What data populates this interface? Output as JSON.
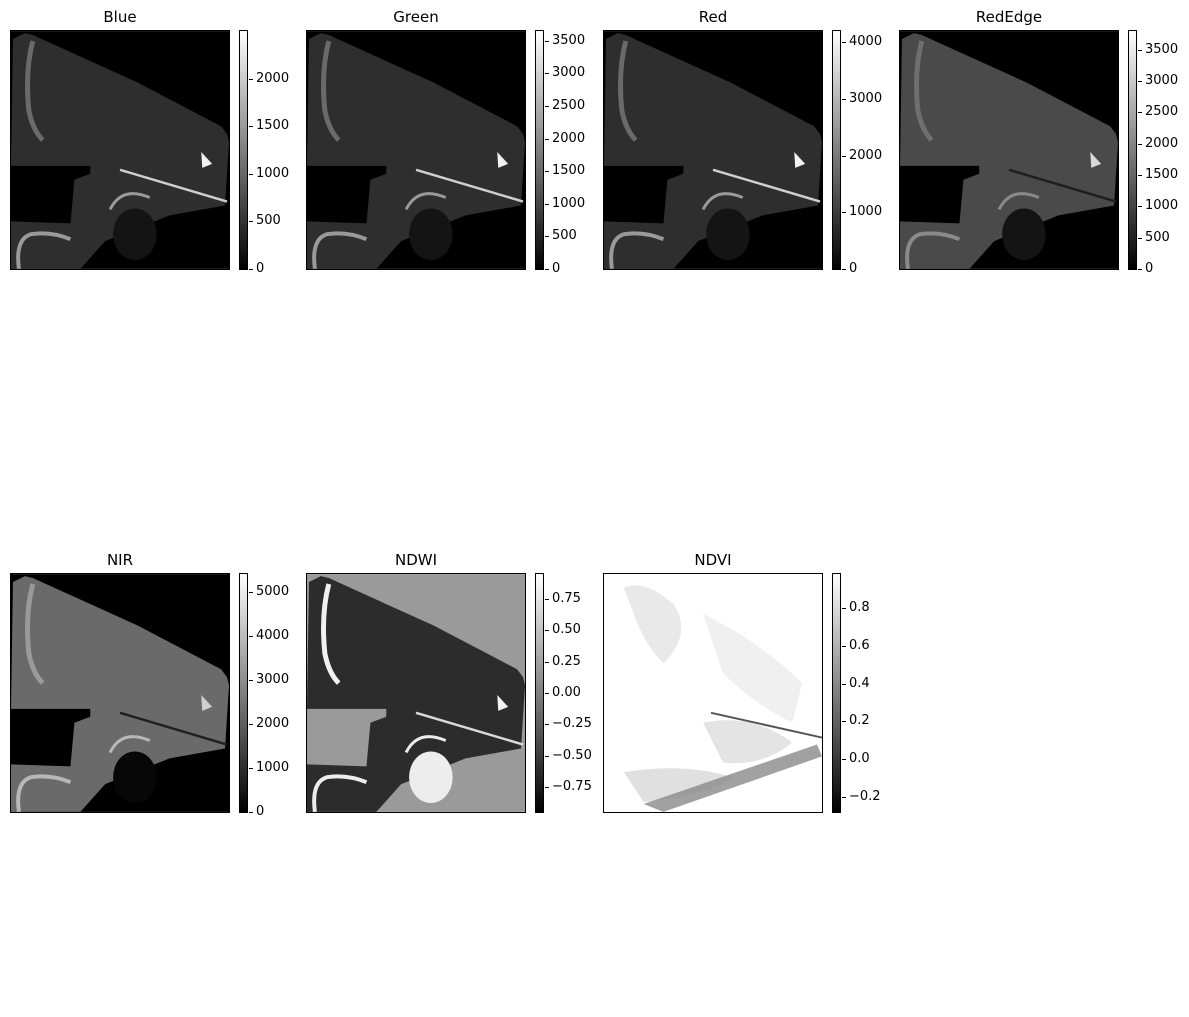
{
  "chart_data": [
    {
      "type": "heatmap",
      "title": "Blue",
      "colormap": "gray",
      "vmin": 0,
      "vmax": 2500,
      "ticks": [
        0,
        500,
        1000,
        1500,
        2000
      ],
      "tick_labels": [
        "0",
        "500",
        "1000",
        "1500",
        "2000"
      ]
    },
    {
      "type": "heatmap",
      "title": "Green",
      "colormap": "gray",
      "vmin": 0,
      "vmax": 3650,
      "ticks": [
        0,
        500,
        1000,
        1500,
        2000,
        2500,
        3000,
        3500
      ],
      "tick_labels": [
        "0",
        "500",
        "1000",
        "1500",
        "2000",
        "2500",
        "3000",
        "3500"
      ]
    },
    {
      "type": "heatmap",
      "title": "Red",
      "colormap": "gray",
      "vmin": 0,
      "vmax": 4200,
      "ticks": [
        0,
        1000,
        2000,
        3000,
        4000
      ],
      "tick_labels": [
        "0",
        "1000",
        "2000",
        "3000",
        "4000"
      ]
    },
    {
      "type": "heatmap",
      "title": "RedEdge",
      "colormap": "gray",
      "vmin": 0,
      "vmax": 3800,
      "ticks": [
        0,
        500,
        1000,
        1500,
        2000,
        2500,
        3000,
        3500
      ],
      "tick_labels": [
        "0",
        "500",
        "1000",
        "1500",
        "2000",
        "2500",
        "3000",
        "3500"
      ]
    },
    {
      "type": "heatmap",
      "title": "NIR",
      "colormap": "gray",
      "vmin": 0,
      "vmax": 5400,
      "ticks": [
        0,
        1000,
        2000,
        3000,
        4000,
        5000
      ],
      "tick_labels": [
        "0",
        "1000",
        "2000",
        "3000",
        "4000",
        "5000"
      ]
    },
    {
      "type": "heatmap",
      "title": "NDWI",
      "colormap": "gray",
      "vmin": -0.95,
      "vmax": 0.95,
      "ticks": [
        -0.75,
        -0.5,
        -0.25,
        0.0,
        0.25,
        0.5,
        0.75
      ],
      "tick_labels": [
        "−0.75",
        "−0.50",
        "−0.25",
        "0.00",
        "0.25",
        "0.50",
        "0.75"
      ]
    },
    {
      "type": "heatmap",
      "title": "NDVI",
      "colormap": "gray",
      "vmin": -0.28,
      "vmax": 0.98,
      "ticks": [
        -0.2,
        0.0,
        0.2,
        0.4,
        0.6,
        0.8
      ],
      "tick_labels": [
        "−0.2",
        "0.0",
        "0.2",
        "0.4",
        "0.6",
        "0.8"
      ]
    }
  ]
}
